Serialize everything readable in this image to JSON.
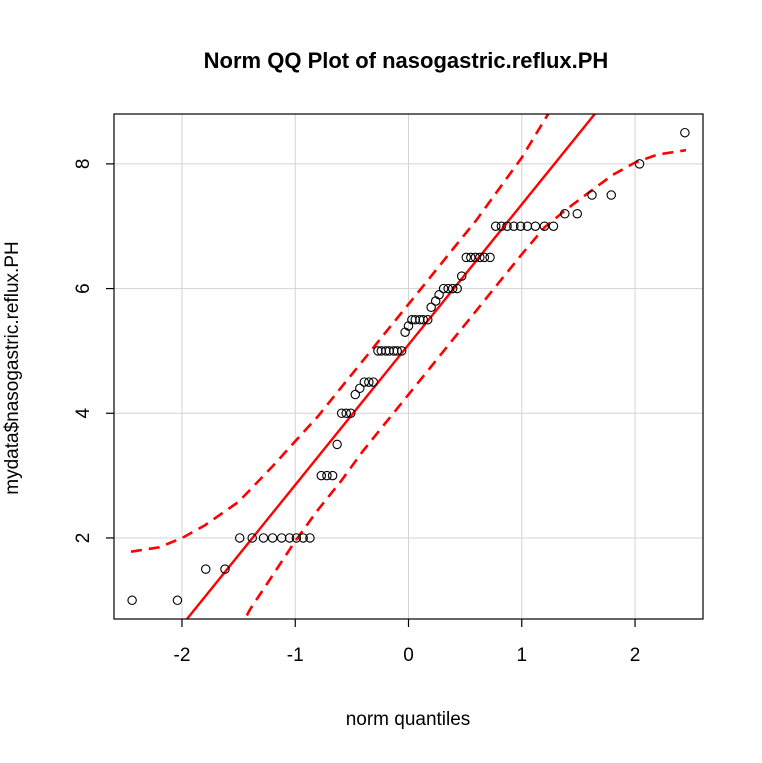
{
  "chart_data": {
    "type": "scatter",
    "title": "Norm QQ Plot of nasogastric.reflux.PH",
    "xlabel": "norm quantiles",
    "ylabel": "mydata$nasogastric.reflux.PH",
    "xlim": [
      -2.6,
      2.6
    ],
    "ylim": [
      0.7,
      8.8
    ],
    "x_ticks": [
      -2,
      -1,
      0,
      1,
      2
    ],
    "x_tick_labels": [
      "-2",
      "-1",
      "0",
      "1",
      "2"
    ],
    "y_ticks": [
      2,
      4,
      6,
      8
    ],
    "y_tick_labels": [
      "2",
      "4",
      "6",
      "8"
    ],
    "grid": true,
    "colors": {
      "points": "#000000",
      "reference_line": "#ff0000",
      "envelope": "#ff0000",
      "grid": "#d3d3d3"
    },
    "points": [
      [
        -2.44,
        1.0
      ],
      [
        -2.04,
        1.0
      ],
      [
        -1.79,
        1.5
      ],
      [
        -1.62,
        1.5
      ],
      [
        -1.49,
        2.0
      ],
      [
        -1.38,
        2.0
      ],
      [
        -1.28,
        2.0
      ],
      [
        -1.2,
        2.0
      ],
      [
        -1.12,
        2.0
      ],
      [
        -1.05,
        2.0
      ],
      [
        -0.99,
        2.0
      ],
      [
        -0.93,
        2.0
      ],
      [
        -0.87,
        2.0
      ],
      [
        -0.77,
        3.0
      ],
      [
        -0.72,
        3.0
      ],
      [
        -0.67,
        3.0
      ],
      [
        -0.63,
        3.5
      ],
      [
        -0.59,
        4.0
      ],
      [
        -0.55,
        4.0
      ],
      [
        -0.51,
        4.0
      ],
      [
        -0.47,
        4.3
      ],
      [
        -0.43,
        4.4
      ],
      [
        -0.39,
        4.5
      ],
      [
        -0.35,
        4.5
      ],
      [
        -0.31,
        4.5
      ],
      [
        -0.27,
        5.0
      ],
      [
        -0.24,
        5.0
      ],
      [
        -0.2,
        5.0
      ],
      [
        -0.17,
        5.0
      ],
      [
        -0.13,
        5.0
      ],
      [
        -0.1,
        5.0
      ],
      [
        -0.06,
        5.0
      ],
      [
        -0.03,
        5.3
      ],
      [
        0.0,
        5.4
      ],
      [
        0.03,
        5.5
      ],
      [
        0.06,
        5.5
      ],
      [
        0.1,
        5.5
      ],
      [
        0.13,
        5.5
      ],
      [
        0.17,
        5.5
      ],
      [
        0.2,
        5.7
      ],
      [
        0.24,
        5.8
      ],
      [
        0.27,
        5.9
      ],
      [
        0.31,
        6.0
      ],
      [
        0.35,
        6.0
      ],
      [
        0.39,
        6.0
      ],
      [
        0.43,
        6.0
      ],
      [
        0.47,
        6.2
      ],
      [
        0.51,
        6.5
      ],
      [
        0.55,
        6.5
      ],
      [
        0.59,
        6.5
      ],
      [
        0.63,
        6.5
      ],
      [
        0.67,
        6.5
      ],
      [
        0.72,
        6.5
      ],
      [
        0.77,
        7.0
      ],
      [
        0.82,
        7.0
      ],
      [
        0.87,
        7.0
      ],
      [
        0.93,
        7.0
      ],
      [
        0.99,
        7.0
      ],
      [
        1.05,
        7.0
      ],
      [
        1.12,
        7.0
      ],
      [
        1.2,
        7.0
      ],
      [
        1.28,
        7.0
      ],
      [
        1.38,
        7.2
      ],
      [
        1.49,
        7.2
      ],
      [
        1.62,
        7.5
      ],
      [
        1.79,
        7.5
      ],
      [
        2.04,
        8.0
      ],
      [
        2.44,
        8.5
      ]
    ],
    "reference_line": {
      "intercept": 5.1,
      "slope": 2.25
    },
    "envelope_upper": [
      [
        -2.45,
        1.78
      ],
      [
        -2.2,
        1.85
      ],
      [
        -2.0,
        2.0
      ],
      [
        -1.8,
        2.2
      ],
      [
        -1.5,
        2.58
      ],
      [
        -1.2,
        3.15
      ],
      [
        -1.0,
        3.55
      ],
      [
        -0.8,
        3.95
      ],
      [
        -0.6,
        4.4
      ],
      [
        -0.4,
        4.85
      ],
      [
        -0.2,
        5.3
      ],
      [
        0.0,
        5.75
      ],
      [
        0.2,
        6.2
      ],
      [
        0.4,
        6.65
      ],
      [
        0.6,
        7.1
      ],
      [
        0.8,
        7.6
      ],
      [
        1.0,
        8.1
      ],
      [
        1.2,
        8.7
      ],
      [
        1.4,
        9.3
      ]
    ],
    "envelope_lower": [
      [
        -1.5,
        0.5
      ],
      [
        -1.4,
        0.85
      ],
      [
        -1.2,
        1.4
      ],
      [
        -1.0,
        1.95
      ],
      [
        -0.8,
        2.45
      ],
      [
        -0.6,
        2.9
      ],
      [
        -0.4,
        3.4
      ],
      [
        -0.2,
        3.85
      ],
      [
        0.0,
        4.3
      ],
      [
        0.2,
        4.75
      ],
      [
        0.4,
        5.2
      ],
      [
        0.6,
        5.65
      ],
      [
        0.8,
        6.1
      ],
      [
        1.0,
        6.55
      ],
      [
        1.2,
        6.98
      ],
      [
        1.4,
        7.28
      ],
      [
        1.6,
        7.55
      ],
      [
        1.8,
        7.82
      ],
      [
        2.0,
        8.02
      ],
      [
        2.2,
        8.15
      ],
      [
        2.45,
        8.22
      ]
    ]
  }
}
